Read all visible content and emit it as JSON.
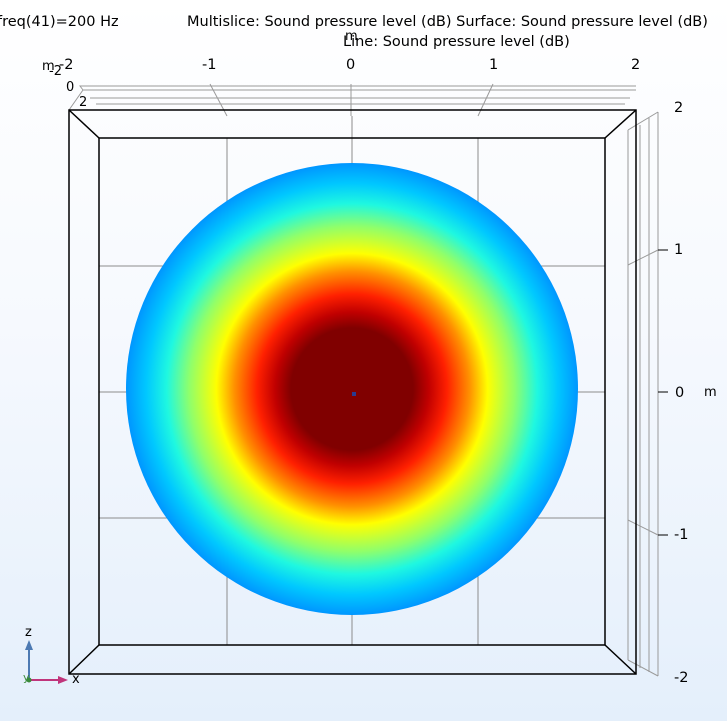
{
  "header": {
    "eval_label": "freq(41)=200 Hz",
    "title_line1": "Multislice: Sound pressure level (dB)  Surface: Sound pressure level (dB)",
    "title_line2": "Line: Sound pressure level (dB)"
  },
  "axes": {
    "unit": "m",
    "top_ticks": [
      "-2",
      "-1",
      "0",
      "1",
      "2"
    ],
    "top_left_depth_ticks": [
      "-2",
      "0",
      "2"
    ],
    "right_ticks": [
      "2",
      "1",
      "0",
      "-1",
      "-2"
    ]
  },
  "triad": {
    "z_label": "z",
    "x_label": "x",
    "y_label": "y"
  },
  "colors": {
    "frame": "#000000",
    "grid": "#8c8c8c",
    "triad_z": "#4d7ab3",
    "triad_x": "#c0347b",
    "triad_y": "#3a8a3a"
  },
  "colormap": "jet",
  "view": "xz-plane, looking along y"
}
